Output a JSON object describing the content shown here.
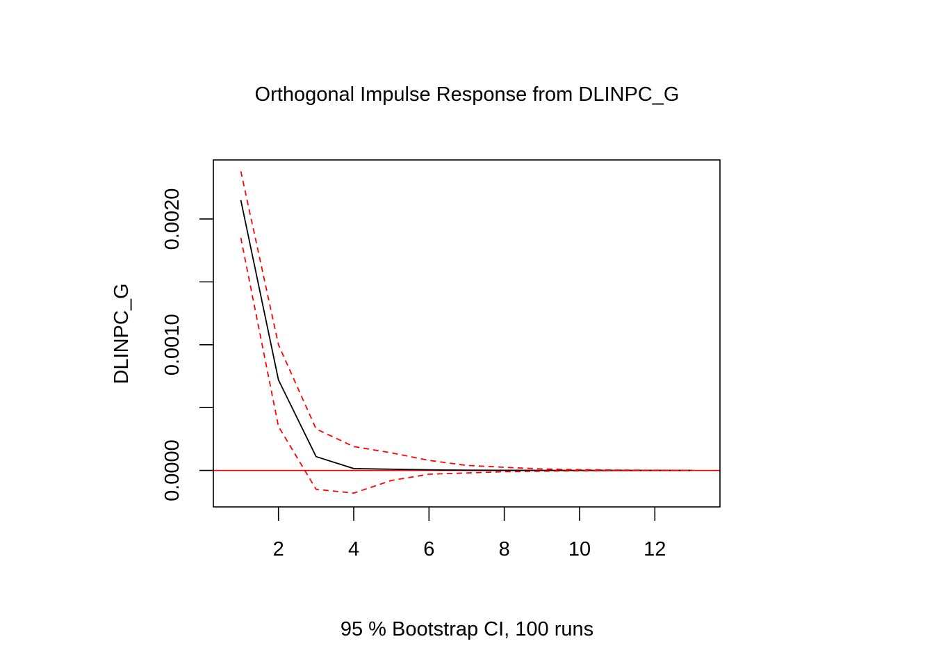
{
  "chart_data": {
    "type": "line",
    "title": "Orthogonal Impulse Response from DLINPC_G",
    "xlabel": "95 % Bootstrap CI,  100 runs",
    "ylabel": "DLINPC_G",
    "xlim": [
      0.27,
      13.73
    ],
    "ylim": [
      -0.00029,
      0.00247
    ],
    "x_ticks": [
      2,
      4,
      6,
      8,
      10,
      12
    ],
    "x_tick_labels": [
      "2",
      "4",
      "6",
      "8",
      "10",
      "12"
    ],
    "y_ticks": [
      0,
      0.0005,
      0.001,
      0.0015,
      0.002
    ],
    "y_tick_labels": [
      "0.0000",
      "",
      "0.0010",
      "",
      "0.0020"
    ],
    "x": [
      1,
      2,
      3,
      4,
      5,
      6,
      7,
      8,
      9,
      10,
      11,
      12,
      13
    ],
    "series": [
      {
        "role": "response",
        "color": "#000000",
        "dashed": false,
        "values": [
          0.00215,
          0.00072,
          0.00011,
          1.5e-05,
          1e-05,
          5e-06,
          2e-06,
          1e-06,
          5e-07,
          2e-07,
          1e-07,
          0.0,
          0.0
        ]
      },
      {
        "role": "upper",
        "color": "#ff0000",
        "dashed": true,
        "values": [
          0.00238,
          0.001,
          0.00033,
          0.00019,
          0.00014,
          8e-05,
          4e-05,
          2.5e-05,
          1.2e-05,
          6e-06,
          3e-06,
          1.5e-06,
          8e-07
        ]
      },
      {
        "role": "lower",
        "color": "#ff0000",
        "dashed": true,
        "values": [
          0.00185,
          0.00035,
          -0.00015,
          -0.00018,
          -8e-05,
          -3e-05,
          -2e-05,
          -1e-05,
          -6e-06,
          -3e-06,
          -1.5e-06,
          -8e-07,
          -4e-07
        ]
      }
    ],
    "reference_line": {
      "y": 0,
      "color": "#ff0000"
    },
    "grid": false
  }
}
